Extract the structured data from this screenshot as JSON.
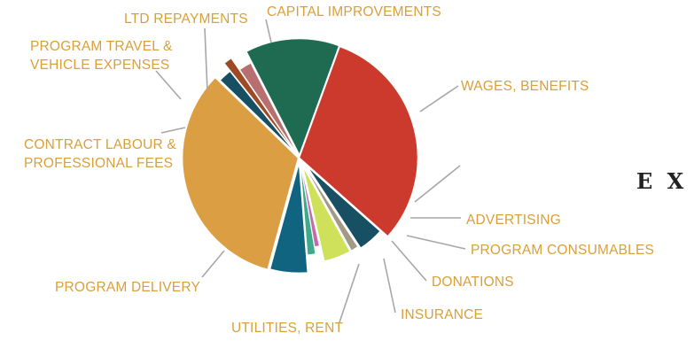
{
  "chart_data": {
    "type": "pie",
    "style": "exploded-slices",
    "title": "",
    "label_color": "#d9a03a",
    "slices": [
      {
        "label": "WAGES, BENEFITS",
        "value": 31,
        "color": "#cc3a2e"
      },
      {
        "label": "",
        "value": 4.2,
        "color": "#174f63"
      },
      {
        "label": "ADVERTISING",
        "value": 1.2,
        "color": "#a09a86"
      },
      {
        "label": "PROGRAM CONSUMABLES",
        "value": 4.5,
        "color": "#cfe05a"
      },
      {
        "label": "DONATIONS",
        "value": 0.9,
        "color": "#c66aa8"
      },
      {
        "label": "INSURANCE",
        "value": 1.4,
        "color": "#3bab8b"
      },
      {
        "label": "UTILITIES, RENT",
        "value": 5.5,
        "color": "#11647f"
      },
      {
        "label": "PROGRAM DELIVERY",
        "value": 33,
        "color": "#dc9e42"
      },
      {
        "label": "CONTRACT LABOUR & PROFESSIONAL FEES",
        "value": 2.0,
        "color": "#174f63"
      },
      {
        "label": "PROGRAM TRAVEL & VEHICLE EXPENSES",
        "value": 1.2,
        "color": "#9e4a24"
      },
      {
        "label": "LTD REPAYMENTS",
        "value": 2.0,
        "color": "#b86f70"
      },
      {
        "label": "CAPITAL IMPROVEMENTS",
        "value": 13.1,
        "color": "#1f6b51"
      }
    ]
  },
  "side_text": "E X"
}
